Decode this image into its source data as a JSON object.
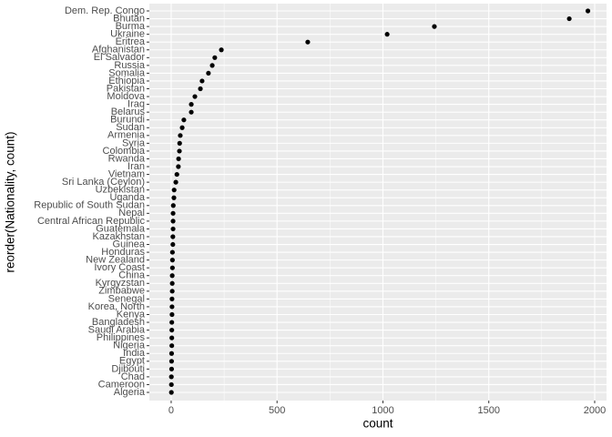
{
  "chart_data": {
    "type": "dot",
    "x_label": "count",
    "y_label": "reorder(Nationality, count)",
    "categories": [
      "Dem. Rep. Congo",
      "Bhutan",
      "Burma",
      "Ukraine",
      "Eritrea",
      "Afghanistan",
      "El Salvador",
      "Russia",
      "Somalia",
      "Ethiopia",
      "Pakistan",
      "Moldova",
      "Iraq",
      "Belarus",
      "Burundi",
      "Sudan",
      "Armenia",
      "Syria",
      "Colombia",
      "Rwanda",
      "Iran",
      "Vietnam",
      "Sri Lanka (Ceylon)",
      "Uzbekistan",
      "Uganda",
      "Republic of South Sudan",
      "Nepal",
      "Central African Republic",
      "Guatemala",
      "Kazakhstan",
      "Guinea",
      "Honduras",
      "New Zealand",
      "Ivory Coast",
      "China",
      "Kyrgyzstan",
      "Zimbabwe",
      "Senegal",
      "Korea, North",
      "Kenya",
      "Bangladesh",
      "Saudi Arabia",
      "Philippines",
      "Nigeria",
      "India",
      "Egypt",
      "Djibouti",
      "Chad",
      "Cameroon",
      "Algeria"
    ],
    "values": [
      1968,
      1880,
      1243,
      1020,
      645,
      237,
      206,
      194,
      176,
      146,
      138,
      112,
      95,
      95,
      60,
      52,
      43,
      40,
      39,
      35,
      34,
      27,
      22,
      14,
      13,
      10,
      9,
      9,
      9,
      8,
      8,
      6,
      6,
      6,
      5,
      5,
      5,
      4,
      4,
      4,
      3,
      3,
      3,
      3,
      2,
      2,
      2,
      1,
      1,
      1
    ],
    "color": "#000000",
    "xlim": [
      -103,
      2056
    ],
    "xticks": [
      0,
      500,
      1000,
      1500,
      2000
    ],
    "grid": true
  }
}
